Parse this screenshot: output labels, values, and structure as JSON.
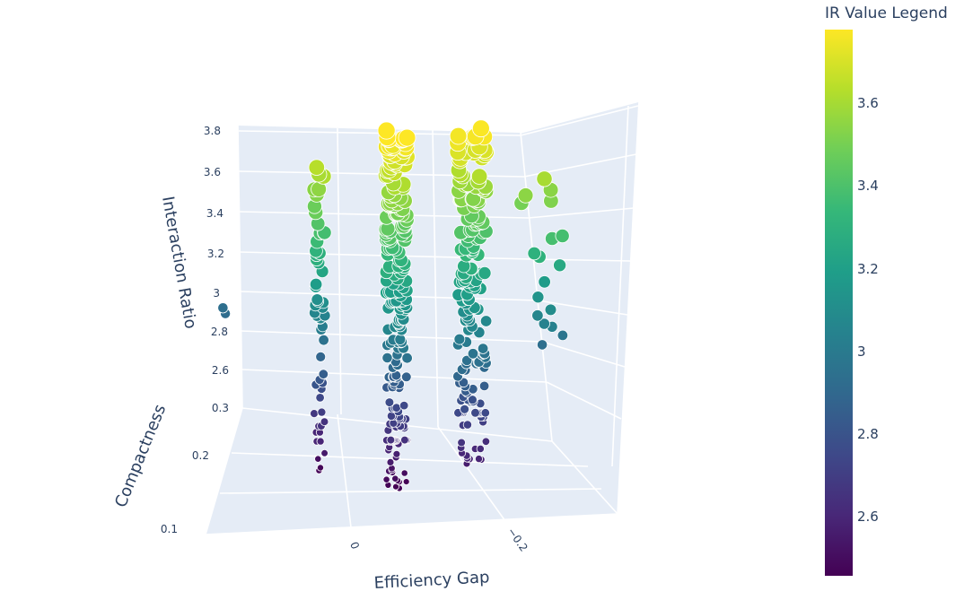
{
  "chart_data": {
    "type": "scatter3d",
    "x_axis": {
      "title": "Efficiency Gap",
      "tick_labels": [
        "0",
        "−0.2"
      ]
    },
    "y_axis": {
      "title": "Compactness",
      "tick_labels": [
        "0.1",
        "0.2",
        "0.3"
      ]
    },
    "z_axis": {
      "title": "Interaction Ratio",
      "tick_labels": [
        "2.6",
        "2.8",
        "3",
        "3.2",
        "3.4",
        "3.6",
        "3.8"
      ],
      "range": [
        2.45,
        3.85
      ]
    },
    "colorbar": {
      "title": "IR Value Legend",
      "colorscale": "Viridis",
      "range": [
        2.45,
        3.78
      ],
      "tick_labels": [
        "2.6",
        "2.8",
        "3",
        "3.2",
        "3.4",
        "3.6"
      ]
    },
    "marker_size_encodes": "Interaction Ratio",
    "series": [
      {
        "efficiency_gap": 0.1,
        "compactness": 0.15,
        "ir_range": [
          2.45,
          3.65
        ],
        "count": 55
      },
      {
        "efficiency_gap": 0.0,
        "compactness": 0.25,
        "ir_range": [
          2.45,
          3.8
        ],
        "count": 230
      },
      {
        "efficiency_gap": -0.1,
        "compactness": 0.25,
        "ir_range": [
          2.55,
          3.78
        ],
        "count": 170
      },
      {
        "efficiency_gap": -0.25,
        "compactness": 0.3,
        "ir_range": [
          2.85,
          3.7
        ],
        "count": 18
      },
      {
        "efficiency_gap": 0.18,
        "compactness": 0.12,
        "ir_range": [
          2.45,
          3.05
        ],
        "count": 2
      }
    ]
  },
  "colors": {
    "scene_bg": "#e5ecf6",
    "grid": "#ffffff",
    "text": "#2a3f5f"
  }
}
